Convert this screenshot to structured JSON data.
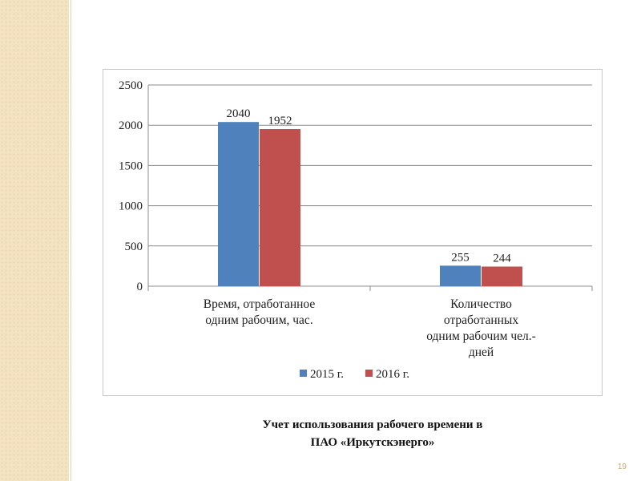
{
  "slide": {
    "caption_line1": "Учет использования рабочего времени в",
    "caption_line2": "ПАО «Иркутскэнерго»",
    "page_number": "19"
  },
  "colors": {
    "series_2015": "#4f81bd",
    "series_2016": "#c0504d",
    "accent_strip": "#f3e3c1"
  },
  "chart_data": {
    "type": "bar",
    "categories": [
      [
        "Время, отработанное",
        "одним рабочим, час."
      ],
      [
        "Количество",
        "отработанных",
        "одним рабочим чел.-",
        "дней"
      ]
    ],
    "series": [
      {
        "name": "2015 г.",
        "values": [
          2040,
          255
        ]
      },
      {
        "name": "2016 г.",
        "values": [
          1952,
          244
        ]
      }
    ],
    "ylim": [
      0,
      2500
    ],
    "yticks": [
      0,
      500,
      1000,
      1500,
      2000,
      2500
    ],
    "grid": true,
    "legend": "bottom",
    "data_labels": true
  }
}
